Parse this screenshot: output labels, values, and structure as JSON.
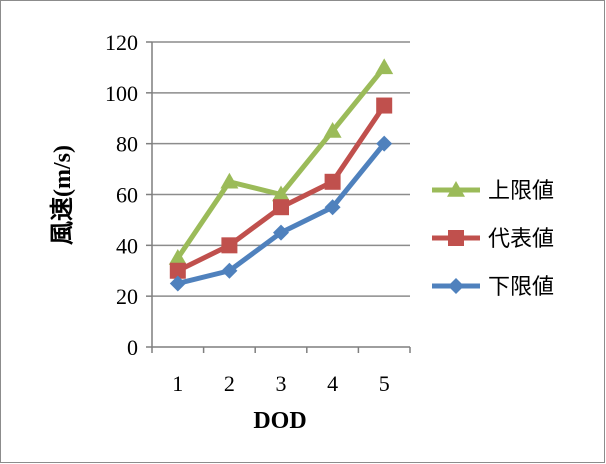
{
  "chart_data": {
    "type": "line",
    "title": "",
    "xlabel": "DOD",
    "ylabel": "風速(m/s)",
    "categories": [
      "1",
      "2",
      "3",
      "4",
      "5"
    ],
    "ylim": [
      0,
      120
    ],
    "yticks": [
      0,
      20,
      40,
      60,
      80,
      100,
      120
    ],
    "grid": true,
    "legend_position": "right",
    "series": [
      {
        "name": "上限値",
        "values": [
          35,
          65,
          60,
          85,
          110
        ],
        "color": "#9BBB59",
        "marker": "triangle"
      },
      {
        "name": "代表値",
        "values": [
          30,
          40,
          55,
          65,
          95
        ],
        "color": "#C0504D",
        "marker": "square"
      },
      {
        "name": "下限値",
        "values": [
          25,
          30,
          45,
          55,
          80
        ],
        "color": "#4F81BD",
        "marker": "diamond"
      }
    ]
  }
}
